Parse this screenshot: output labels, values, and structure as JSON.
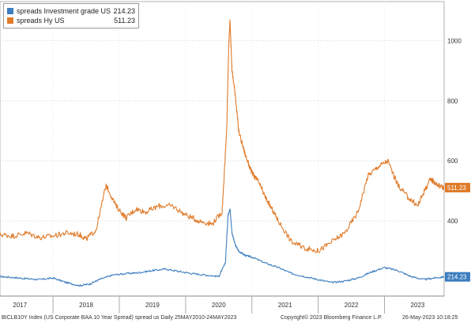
{
  "legend": {
    "items": [
      {
        "label": "spreads Investment grade US",
        "value": "214.23",
        "color": "#3d7ebf"
      },
      {
        "label": "spreads Hy US",
        "value": "511.23",
        "color": "#e07b2a"
      }
    ]
  },
  "footer": {
    "left": "BICLB10Y Index (US Corporate BAA 10 Year Spread) spread us  Daily 25MAY2010-24MAY2023",
    "center": "Copyright© 2023 Bloomberg Finance L.P.",
    "right": "26-May-2023 10:18:25"
  },
  "chart_data": {
    "type": "line",
    "ylim": [
      150,
      1130
    ],
    "yticks": [
      400,
      600,
      800,
      1000
    ],
    "xlim": [
      2016.7,
      2023.4
    ],
    "xticks": [
      {
        "label": "2017",
        "pos": 2017.0
      },
      {
        "label": "2018",
        "pos": 2018.0
      },
      {
        "label": "2019",
        "pos": 2019.0
      },
      {
        "label": "2020",
        "pos": 2020.0
      },
      {
        "label": "2021",
        "pos": 2021.0
      },
      {
        "label": "2022",
        "pos": 2022.0
      },
      {
        "label": "2023",
        "pos": 2023.0
      }
    ],
    "year_boundaries": [
      2017.5,
      2018.5,
      2019.5,
      2020.5,
      2021.5,
      2022.5
    ],
    "grid": true,
    "series": [
      {
        "name": "spreads Investment grade US",
        "color": "#3d7ebf",
        "last_label": "214.23",
        "x": [
          2016.7,
          2016.9,
          2017.1,
          2017.3,
          2017.5,
          2017.7,
          2017.9,
          2018.05,
          2018.2,
          2018.4,
          2018.6,
          2018.8,
          2019.0,
          2019.2,
          2019.4,
          2019.6,
          2019.8,
          2020.0,
          2020.1,
          2020.14,
          2020.17,
          2020.2,
          2020.25,
          2020.3,
          2020.4,
          2020.5,
          2020.7,
          2020.9,
          2021.1,
          2021.3,
          2021.5,
          2021.7,
          2021.9,
          2022.1,
          2022.3,
          2022.5,
          2022.7,
          2022.9,
          2023.1,
          2023.25,
          2023.4
        ],
        "y": [
          215,
          212,
          208,
          205,
          210,
          195,
          185,
          190,
          205,
          220,
          225,
          228,
          235,
          240,
          232,
          225,
          220,
          215,
          260,
          420,
          440,
          360,
          320,
          300,
          285,
          280,
          260,
          245,
          225,
          215,
          205,
          195,
          200,
          210,
          230,
          245,
          235,
          215,
          205,
          210,
          214
        ]
      },
      {
        "name": "spreads Hy US",
        "color": "#e07b2a",
        "last_label": "511.23",
        "x": [
          2016.7,
          2016.9,
          2017.1,
          2017.3,
          2017.5,
          2017.7,
          2017.9,
          2018.0,
          2018.15,
          2018.3,
          2018.45,
          2018.6,
          2018.75,
          2018.9,
          2019.1,
          2019.3,
          2019.5,
          2019.7,
          2019.9,
          2020.05,
          2020.12,
          2020.15,
          2020.17,
          2020.2,
          2020.25,
          2020.3,
          2020.4,
          2020.5,
          2020.6,
          2020.7,
          2020.8,
          2020.9,
          2021.1,
          2021.3,
          2021.5,
          2021.7,
          2021.9,
          2022.1,
          2022.25,
          2022.4,
          2022.55,
          2022.7,
          2022.85,
          2023.0,
          2023.1,
          2023.2,
          2023.3,
          2023.4
        ],
        "y": [
          355,
          350,
          360,
          345,
          350,
          360,
          355,
          340,
          370,
          520,
          450,
          410,
          440,
          430,
          450,
          450,
          420,
          400,
          390,
          430,
          700,
          980,
          1070,
          900,
          820,
          700,
          620,
          560,
          530,
          480,
          440,
          400,
          330,
          310,
          300,
          330,
          360,
          430,
          550,
          580,
          600,
          520,
          480,
          450,
          500,
          540,
          520,
          511
        ]
      }
    ]
  }
}
